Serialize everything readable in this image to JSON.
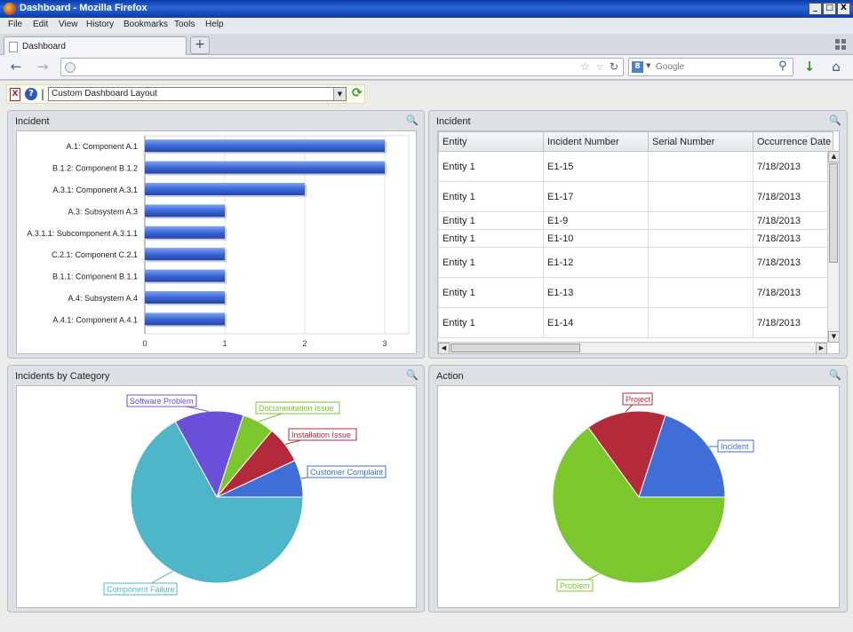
{
  "window": {
    "title": "Dashboard - Mozilla Firefox",
    "minimize": "_",
    "restore": "□",
    "close": "X"
  },
  "menu": [
    "File",
    "Edit",
    "View",
    "History",
    "Bookmarks",
    "Tools",
    "Help"
  ],
  "tabs": [
    {
      "label": "Dashboard"
    }
  ],
  "newtab_label": "+",
  "nav": {
    "back": "←",
    "forward": "→",
    "url": "",
    "star": "☆",
    "reload": "↻",
    "search_placeholder": "Google",
    "download": "↓",
    "home": "⌂"
  },
  "toolbar": {
    "help": "?",
    "pdf": "X",
    "separator": "|",
    "layout_value": "Custom Dashboard Layout",
    "refresh": "⟳"
  },
  "panels": {
    "incident_chart": {
      "title": "Incident"
    },
    "incident_table": {
      "title": "Incident"
    },
    "category_pie": {
      "title": "Incidents by Category"
    },
    "action_pie": {
      "title": "Action"
    }
  },
  "incident_table": {
    "columns": [
      "Entity",
      "Incident Number",
      "Serial Number",
      "Occurrence Date"
    ],
    "rows": [
      [
        "Entity 1",
        "E1-15",
        "",
        "7/18/2013"
      ],
      [
        "Entity 1",
        "E1-17",
        "",
        "7/18/2013"
      ],
      [
        "Entity 1",
        "E1-9",
        "",
        "7/18/2013"
      ],
      [
        "Entity 1",
        "E1-10",
        "",
        "7/18/2013"
      ],
      [
        "Entity 1",
        "E1-12",
        "",
        "7/18/2013"
      ],
      [
        "Entity 1",
        "E1-13",
        "",
        "7/18/2013"
      ],
      [
        "Entity 1",
        "E1-14",
        "",
        "7/18/2013"
      ]
    ]
  },
  "colors": {
    "bar": "#3d68d8",
    "software": "#6b4fd8",
    "documentation": "#7cc72e",
    "installation": "#b32b3a",
    "customer": "#3f6fd6",
    "component": "#4fb6c9",
    "project": "#b32b3a",
    "incident": "#3f6fd6",
    "problem": "#7cc72e"
  },
  "chart_data": [
    {
      "type": "bar",
      "orientation": "horizontal",
      "categories": [
        "A.1: Component A.1",
        "B.1.2: Component B.1.2",
        "A.3.1: Component A.3.1",
        "A.3: Subsystem A.3",
        "A.3.1.1: Subcomponent A.3.1.1",
        "C.2.1: Component C.2.1",
        "B.1.1: Component B.1.1",
        "A.4: Subsystem A.4",
        "A.4.1: Component A.4.1"
      ],
      "values": [
        3,
        3,
        2,
        1,
        1,
        1,
        1,
        1,
        1
      ],
      "xlim": [
        0,
        3.3
      ],
      "xticks": [
        "0",
        "1",
        "2",
        "3"
      ],
      "grid": true
    },
    {
      "type": "pie",
      "labels": [
        "Customer Complaint",
        "Installation Issue",
        "Documentation Issue",
        "Software Problem",
        "Component Failure"
      ],
      "values": [
        7,
        7,
        6,
        13,
        67
      ]
    },
    {
      "type": "pie",
      "labels": [
        "Incident",
        "Project",
        "Problem"
      ],
      "values": [
        20,
        15,
        65
      ]
    }
  ]
}
